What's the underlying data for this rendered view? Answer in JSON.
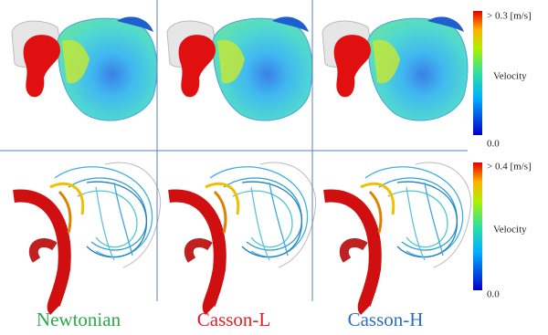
{
  "colorbars": [
    {
      "max_label": "> 0.3 [m/s]",
      "title": "Velocity",
      "min_label": "0.0"
    },
    {
      "max_label": "> 0.4 [m/s]",
      "title": "Velocity",
      "min_label": "0.0"
    }
  ],
  "columns": [
    {
      "label": "Newtonian",
      "color": "#2aa84a"
    },
    {
      "label": "Casson-L",
      "color": "#e0202a"
    },
    {
      "label": "Casson-H",
      "color": "#2a6fc0"
    }
  ]
}
